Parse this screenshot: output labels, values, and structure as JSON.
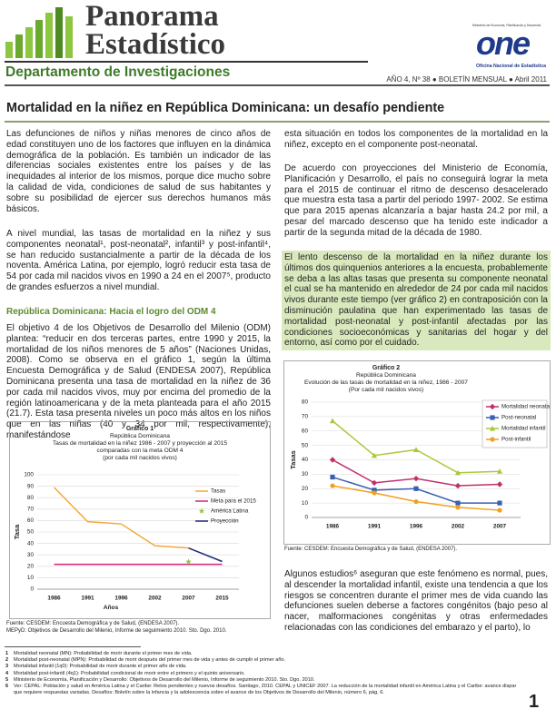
{
  "header": {
    "title_line1": "Panorama",
    "title_line2": "Estadístico",
    "department": "Departamento de Investigaciones",
    "issue": "AÑO 4, Nº 38 ● BOLETÍN MENSUAL ● Abril 2011",
    "logo_ministry": "Ministerio de Economía, Planificación y Desarrollo",
    "logo_wordmark": "one",
    "logo_office": "Oficina Nacional de Estadística"
  },
  "article": {
    "title": "Mortalidad en la niñez en República Dominicana: un desafío pendiente",
    "left": [
      "Las defunciones de niños y niñas menores de cinco años de edad constituyen uno de los factores que influyen en la dinámica demográfica de la población. Es también un indicador de las diferencias sociales existentes entre los países y de las inequidades al interior de los mismos, porque dice mucho sobre la calidad de vida, condiciones de salud de sus habitantes y sobre su posibilidad de ejercer sus derechos humanos más básicos.",
      "A nivel mundial, las tasas de mortalidad en la niñez y sus componentes neonatal¹, post-neonatal², infantil³ y post-infantil⁴, se han reducido sustancialmente a partir de la década de los noventa. América Latina, por ejemplo, logró reducir esta tasa de 54 por cada mil nacidos vivos en 1990 a 24 en el 2007⁵, producto de grandes esfuerzos a nivel mundial."
    ],
    "subheading": "República Dominicana: Hacia el logro del ODM 4",
    "left_after_subheading": "El objetivo 4 de los Objetivos de Desarrollo del Milenio (ODM) plantea: “reducir en dos terceras partes, entre 1990 y 2015, la mortalidad de los niños menores de 5 años” (Naciones Unidas, 2008). Como se observa en el gráfico 1, según la última Encuesta Demográfica y de Salud (ENDESA 2007), República Dominicana presenta una tasa de mortalidad en la niñez de 36 por cada mil nacidos vivos, muy por encima del promedio de la región latinoamericana y de la meta planteada para el año 2015 (21.7). Esta tasa presenta niveles un poco más altos en los niños que en las niñas (40 y 34 por mil, respectivamente), manifestándose",
    "chart1_sources": [
      "Fuente: CESDEM: Encuesta Demográfica y de Salud, (ENDESA 2007).",
      "MEPyD: Objetivos de Desarrollo del Milenio, Informe de seguimiento 2010. Sto. Dgo. 2010."
    ],
    "right": [
      "esta situación en todos los componentes de la mortalidad en la niñez, excepto en el componente post-neonatal.",
      "De acuerdo con proyecciones del Ministerio de Economía, Planificación y Desarrollo, el país no conseguirá lograr la meta para el 2015 de continuar el ritmo de descenso desacelerado que muestra esta tasa a partir del  periodo 1997- 2002. Se estima que para 2015 apenas alcanzaría a bajar hasta 24.2 por mil, a pesar del marcado descenso que ha tenido este indicador a partir de la segunda mitad de la década de 1980."
    ],
    "highlight": "El lento descenso de la mortalidad en la niñez durante los últimos dos quinquenios anteriores a la encuesta, probablemente se deba a las altas tasas que presenta su componente neonatal el cual se ha mantenido en alrededor de 24 por cada mil nacidos vivos durante este tiempo (ver gráfico 2) en contraposición con la disminución paulatina que han experimentado las tasas de mortalidad post-neonatal y post-infantil afectadas por las condiciones socioeconómicas y sanitarias del hogar y del entorno, así como por el cuidado.",
    "chart2_source": "Fuente: CESDEM: Encuesta Demográfica y de Salud, (ENDESA 2007).",
    "right_end": "Algunos estudios⁶ aseguran que este fenómeno es normal, pues, al descender la mortalidad infantil, existe una tendencia a que los riesgos se concentren durante el primer mes de vida cuando las defunciones suelen deberse a factores congénitos (bajo peso al nacer, malformaciones congénitas y otras enfermedades relacionadas con las condiciones del embarazo y el parto), lo"
  },
  "footnotes": [
    {
      "number": 1,
      "text": "Mortalidad neonatal (MN): Probabilidad de morir durante el primer mes de vida."
    },
    {
      "number": 2,
      "text": "Mortalidad post-neonatal (MPN): Probabilidad de morir después del primer mes de vida y antes de cumplir el primer año."
    },
    {
      "number": 3,
      "text": "Mortalidad infantil (1q0): Probabilidad de morir durante el primer año de vida."
    },
    {
      "number": 4,
      "text": "Mortalidad post-infantil (4q1): Probabilidad condicional de morir entre el primero y el quinto aniversario."
    },
    {
      "number": 5,
      "text": "Ministerio de Economía, Planificación y Desarrollo: Objetivos de Desarrollo del Milenio, Informe de seguimiento 2010. Sto. Dgo. 2010."
    },
    {
      "number": 6,
      "text": "Ver: CEPAL: Población y salud en América Latina y el Caribe: Retos pendientes y nuevos desafíos. Santiago, 2010. CEPAL y UNICEF 2007. La reducción de la mortalidad infantil en América Latina y el Caribe: avance dispar que requiere respuestas variadas. Desafíos: Boletín sobre la infancia y la adolescencia sobre el avance de los Objetivos de Desarrollo del Milenio, número 6, pág. 6."
    }
  ],
  "page_number": 1,
  "chart_data": [
    {
      "type": "line",
      "title": "Gráfico 1",
      "subtitle": [
        "República Dominicana",
        "Tasas de mortalidad en la niñez 1986 - 2007 y proyección al 2015",
        "comparadas con la meta ODM 4",
        "(por cada mil nacidos vivos)"
      ],
      "xlabel": "Años",
      "ylabel": "Tasa",
      "categories": [
        "1986",
        "1991",
        "1996",
        "2002",
        "2007",
        "2015"
      ],
      "ylim": [
        0,
        100
      ],
      "yticks": [
        0,
        10,
        20,
        30,
        40,
        50,
        60,
        70,
        80,
        90,
        100
      ],
      "grid": true,
      "legend": "right",
      "series": [
        {
          "name": "Tasas",
          "color": "#f2a93b",
          "marker": "none",
          "values": [
            89,
            59,
            57,
            38,
            36,
            null
          ]
        },
        {
          "name": "Meta para el 2015",
          "color": "#d4237a",
          "marker": "none",
          "values": [
            21.7,
            21.7,
            21.7,
            21.7,
            21.7,
            21.7
          ]
        },
        {
          "name": "América Latina",
          "color": "#8cc63f",
          "marker": "star",
          "values": [
            null,
            null,
            null,
            null,
            24,
            null
          ]
        },
        {
          "name": "Proyección",
          "color": "#1c2a7a",
          "marker": "none",
          "values": [
            null,
            null,
            null,
            null,
            36,
            24.2
          ]
        }
      ]
    },
    {
      "type": "line",
      "title": "Gráfico 2",
      "subtitle": [
        "República Dominicana",
        "Evolución de las tasas de mortalidad en la niñez, 1986 - 2007",
        "(Por cada mil nacidos vivos)"
      ],
      "ylabel": "Tasas",
      "categories": [
        "1986",
        "1991",
        "1996",
        "2002",
        "2007"
      ],
      "ylim": [
        0,
        80
      ],
      "yticks": [
        0,
        10,
        20,
        30,
        40,
        50,
        60,
        70,
        80
      ],
      "grid": true,
      "legend": "right",
      "series": [
        {
          "name": "Mortalidad neonatal",
          "color": "#c2306c",
          "marker": "diamond",
          "values": [
            40,
            24,
            27,
            22,
            23
          ]
        },
        {
          "name": "Post-neonatal",
          "color": "#3a5fb0",
          "marker": "square",
          "values": [
            28,
            19,
            20,
            10,
            10
          ]
        },
        {
          "name": "Mortalidad infantil",
          "color": "#a9c93c",
          "marker": "triangle",
          "values": [
            67,
            43,
            47,
            31,
            32
          ]
        },
        {
          "name": "Post-infantil",
          "color": "#f0a020",
          "marker": "circle",
          "values": [
            22,
            17,
            11,
            7,
            5
          ]
        }
      ]
    }
  ]
}
